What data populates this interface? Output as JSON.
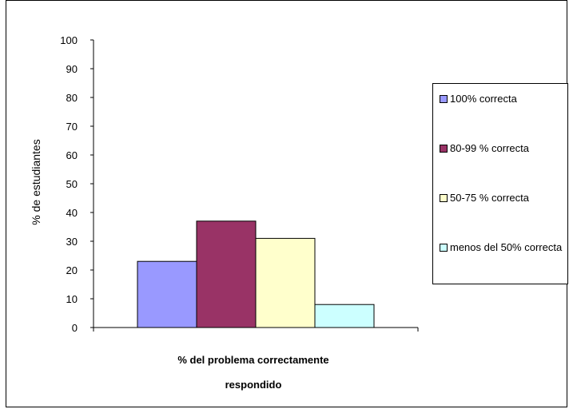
{
  "chart_data": {
    "type": "bar",
    "ylabel": "% de estudiantes",
    "xlabel": "% del problema correctamente respondido",
    "ylim": [
      0,
      100
    ],
    "yticks": [
      0,
      10,
      20,
      30,
      40,
      50,
      60,
      70,
      80,
      90,
      100
    ],
    "grid": false,
    "legend_placement": "right",
    "series": [
      {
        "name": "100% correcta",
        "value": 23,
        "color": "#9999ff"
      },
      {
        "name": "80-99 % correcta",
        "value": 37,
        "color": "#993366"
      },
      {
        "name": "50-75 % correcta",
        "value": 31,
        "color": "#ffffcc"
      },
      {
        "name": "menos del 50% correcta",
        "value": 8,
        "color": "#ccffff"
      }
    ]
  }
}
